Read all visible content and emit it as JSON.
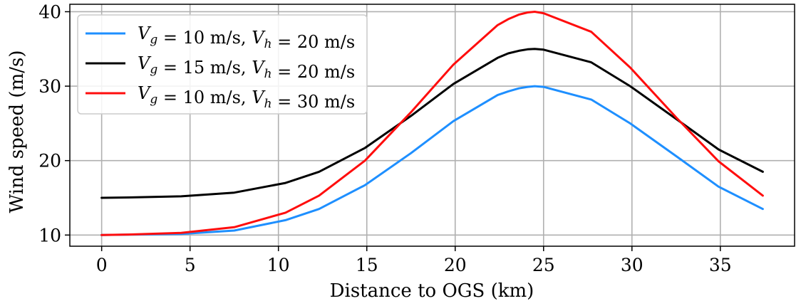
{
  "chart_data": {
    "type": "line",
    "xlabel": "Distance to OGS (km)",
    "ylabel": "Wind speed (m/s)",
    "xlim": [
      -1.8,
      39.2
    ],
    "ylim": [
      8.5,
      41
    ],
    "xticks": [
      0,
      5,
      10,
      15,
      20,
      25,
      30,
      35
    ],
    "yticks": [
      10,
      20,
      30,
      40
    ],
    "grid": true,
    "legend_position": "top-left",
    "series": [
      {
        "name": "V_g = 10 m/s, V_h = 20 m/s",
        "legend": [
          {
            "t": "V",
            "s": "italic"
          },
          {
            "t": "g",
            "s": "sub"
          },
          {
            "t": " = 10 m/s, ",
            "s": "normal"
          },
          {
            "t": "V",
            "s": "italic"
          },
          {
            "t": "h",
            "s": "sub"
          },
          {
            "t": " = 20 m/s",
            "s": "normal"
          }
        ],
        "color": "#1e8fff",
        "x": [
          0,
          1.5,
          4.5,
          7.5,
          10.4,
          12.3,
          14.9,
          17.5,
          19.9,
          22.4,
          23.0,
          23.6,
          24.1,
          24.5,
          25.0,
          27.7,
          29.9,
          32.5,
          34.9,
          37.4
        ],
        "y": [
          10.0,
          10.05,
          10.15,
          10.6,
          12.0,
          13.5,
          16.7,
          21.0,
          25.3,
          28.8,
          29.3,
          29.7,
          29.9,
          30.0,
          29.9,
          28.2,
          25.0,
          20.6,
          16.5,
          13.5
        ]
      },
      {
        "name": "V_g = 15 m/s, V_h = 20 m/s",
        "legend": [
          {
            "t": "V",
            "s": "italic"
          },
          {
            "t": "g",
            "s": "sub"
          },
          {
            "t": " = 15 m/s, ",
            "s": "normal"
          },
          {
            "t": "V",
            "s": "italic"
          },
          {
            "t": "h",
            "s": "sub"
          },
          {
            "t": " = 20 m/s",
            "s": "normal"
          }
        ],
        "color": "#000000",
        "x": [
          0,
          1.5,
          4.5,
          7.5,
          10.4,
          12.3,
          14.9,
          17.5,
          19.9,
          22.4,
          23.0,
          23.6,
          24.1,
          24.5,
          25.0,
          27.7,
          29.9,
          32.5,
          34.9,
          37.4
        ],
        "y": [
          15.0,
          15.05,
          15.2,
          15.7,
          17.0,
          18.5,
          21.7,
          26.0,
          30.3,
          33.8,
          34.4,
          34.75,
          34.95,
          35.0,
          34.9,
          33.2,
          30.0,
          25.6,
          21.5,
          18.5
        ]
      },
      {
        "name": "V_g = 10 m/s, V_h = 30 m/s",
        "legend": [
          {
            "t": "V",
            "s": "italic"
          },
          {
            "t": "g",
            "s": "sub"
          },
          {
            "t": " = 10 m/s, ",
            "s": "normal"
          },
          {
            "t": "V",
            "s": "italic"
          },
          {
            "t": "h",
            "s": "sub"
          },
          {
            "t": " = 30 m/s",
            "s": "normal"
          }
        ],
        "color": "#ff0d0d",
        "x": [
          0,
          1.5,
          4.5,
          7.5,
          10.4,
          12.3,
          14.9,
          17.5,
          19.9,
          22.4,
          23.0,
          23.6,
          24.1,
          24.5,
          25.0,
          27.7,
          29.9,
          32.5,
          34.9,
          37.4
        ],
        "y": [
          10.0,
          10.07,
          10.3,
          11.05,
          13.0,
          15.3,
          20.0,
          26.5,
          32.9,
          38.2,
          39.0,
          39.6,
          39.9,
          40.0,
          39.8,
          37.3,
          32.5,
          25.8,
          19.9,
          15.3
        ]
      }
    ]
  }
}
